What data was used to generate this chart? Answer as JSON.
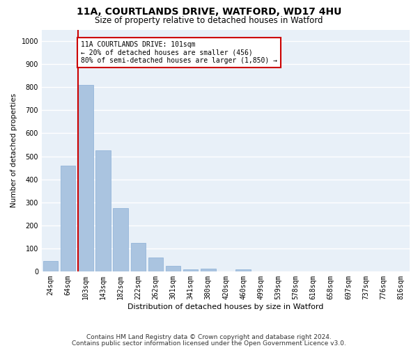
{
  "title1": "11A, COURTLANDS DRIVE, WATFORD, WD17 4HU",
  "title2": "Size of property relative to detached houses in Watford",
  "xlabel": "Distribution of detached houses by size in Watford",
  "ylabel": "Number of detached properties",
  "categories": [
    "24sqm",
    "64sqm",
    "103sqm",
    "143sqm",
    "182sqm",
    "222sqm",
    "262sqm",
    "301sqm",
    "341sqm",
    "380sqm",
    "420sqm",
    "460sqm",
    "499sqm",
    "539sqm",
    "578sqm",
    "618sqm",
    "658sqm",
    "697sqm",
    "737sqm",
    "776sqm",
    "816sqm"
  ],
  "values": [
    45,
    460,
    810,
    525,
    275,
    125,
    60,
    25,
    10,
    12,
    0,
    8,
    0,
    0,
    0,
    0,
    0,
    0,
    0,
    0,
    0
  ],
  "bar_color": "#aac4e0",
  "bar_edgecolor": "#8aaed6",
  "vline_color": "#cc0000",
  "annotation_text": "11A COURTLANDS DRIVE: 101sqm\n← 20% of detached houses are smaller (456)\n80% of semi-detached houses are larger (1,850) →",
  "annotation_box_edgecolor": "#cc0000",
  "annotation_box_facecolor": "#ffffff",
  "ylim": [
    0,
    1050
  ],
  "yticks": [
    0,
    100,
    200,
    300,
    400,
    500,
    600,
    700,
    800,
    900,
    1000
  ],
  "footer1": "Contains HM Land Registry data © Crown copyright and database right 2024.",
  "footer2": "Contains public sector information licensed under the Open Government Licence v3.0.",
  "bg_color": "#ffffff",
  "plot_bg_color": "#e8f0f8",
  "grid_color": "#ffffff",
  "title1_fontsize": 10,
  "title2_fontsize": 8.5,
  "xlabel_fontsize": 8,
  "ylabel_fontsize": 7.5,
  "tick_fontsize": 7,
  "annotation_fontsize": 7,
  "footer_fontsize": 6.5
}
